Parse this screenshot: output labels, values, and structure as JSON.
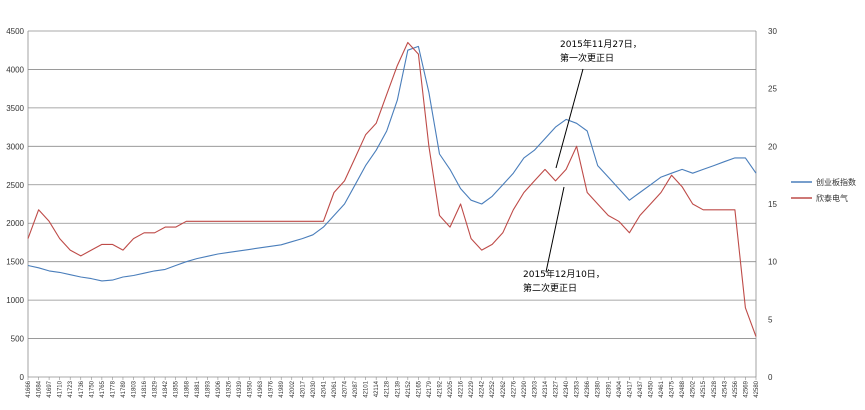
{
  "chart_data": {
    "type": "line",
    "title": "",
    "xlabel": "",
    "ylabel": "",
    "ylim_left": [
      0,
      4500
    ],
    "ylim_right": [
      0,
      30
    ],
    "y_left_ticks": [
      0,
      500,
      1000,
      1500,
      2000,
      2500,
      3000,
      3500,
      4000,
      4500
    ],
    "y_right_ticks": [
      0,
      5,
      10,
      15,
      20,
      25,
      30
    ],
    "x_tick_labels": [
      "41666",
      "41684",
      "41697",
      "41710",
      "41723",
      "41736",
      "41750",
      "41765",
      "41778",
      "41789",
      "41803",
      "41816",
      "41829",
      "41842",
      "41855",
      "41868",
      "41881",
      "41893",
      "41906",
      "41926",
      "41939",
      "41950",
      "41963",
      "41976",
      "41989",
      "42002",
      "42017",
      "42030",
      "42041",
      "42061",
      "42074",
      "42087",
      "42101",
      "42114",
      "42128",
      "42139",
      "42152",
      "42165",
      "42179",
      "42192",
      "42205",
      "42216",
      "42229",
      "42242",
      "42252",
      "42262",
      "42276",
      "42290",
      "42303",
      "42314",
      "42327",
      "42340",
      "42353",
      "42366",
      "42380",
      "42391",
      "42404",
      "42417",
      "42437",
      "42450",
      "42461",
      "42475",
      "42488",
      "42502",
      "42515",
      "42528",
      "42543",
      "42556",
      "42569",
      "42580"
    ],
    "grid": "horizontal",
    "legend_position": "right",
    "series": [
      {
        "name": "创业板指数",
        "axis": "left",
        "color": "#4a7ebb",
        "x": [
          0,
          1,
          2,
          3,
          4,
          5,
          6,
          7,
          8,
          9,
          10,
          11,
          12,
          13,
          14,
          15,
          16,
          17,
          18,
          19,
          20,
          21,
          22,
          23,
          24,
          25,
          26,
          27,
          28,
          29,
          30,
          31,
          32,
          33,
          34,
          35,
          36,
          37,
          38,
          39,
          40,
          41,
          42,
          43,
          44,
          45,
          46,
          47,
          48,
          49,
          50,
          51,
          52,
          53,
          54,
          55,
          56,
          57,
          58,
          59,
          60,
          61,
          62,
          63,
          64,
          65,
          66,
          67,
          68,
          69
        ],
        "values": [
          1450,
          1420,
          1380,
          1360,
          1330,
          1300,
          1280,
          1250,
          1260,
          1300,
          1320,
          1350,
          1380,
          1400,
          1450,
          1500,
          1540,
          1570,
          1600,
          1620,
          1640,
          1660,
          1680,
          1700,
          1720,
          1760,
          1800,
          1850,
          1950,
          2100,
          2250,
          2500,
          2750,
          2950,
          3200,
          3600,
          4250,
          4300,
          3700,
          2900,
          2700,
          2450,
          2300,
          2250,
          2350,
          2500,
          2650,
          2850,
          2950,
          3100,
          3250,
          3350,
          3300,
          3200,
          2750,
          2600,
          2450,
          2300,
          2400,
          2500,
          2600,
          2650,
          2700,
          2650,
          2700,
          2750,
          2800,
          2850,
          2850,
          2650
        ]
      },
      {
        "name": "欣泰电气",
        "axis": "right",
        "color": "#be4b48",
        "x": [
          0,
          1,
          2,
          3,
          4,
          5,
          6,
          7,
          8,
          9,
          10,
          11,
          12,
          13,
          14,
          15,
          16,
          17,
          18,
          19,
          20,
          21,
          22,
          23,
          24,
          25,
          26,
          27,
          28,
          29,
          30,
          31,
          32,
          33,
          34,
          35,
          36,
          37,
          38,
          39,
          40,
          41,
          42,
          43,
          44,
          45,
          46,
          47,
          48,
          49,
          50,
          51,
          52,
          53,
          54,
          55,
          56,
          57,
          58,
          59,
          60,
          61,
          62,
          63,
          64,
          65,
          66,
          67,
          68,
          69
        ],
        "values": [
          12,
          14.5,
          13.5,
          12,
          11,
          10.5,
          11,
          11.5,
          11.5,
          11,
          12,
          12.5,
          12.5,
          13,
          13,
          13.5,
          13.5,
          13.5,
          13.5,
          13.5,
          13.5,
          13.5,
          13.5,
          13.5,
          13.5,
          13.5,
          13.5,
          13.5,
          13.5,
          16,
          17,
          19,
          21,
          22,
          24.5,
          27,
          29,
          28,
          20,
          14,
          13,
          15,
          12,
          11,
          11.5,
          12.5,
          14.5,
          16,
          17,
          18,
          17,
          18,
          20,
          16,
          15,
          14,
          13.5,
          12.5,
          14,
          15,
          16,
          17.5,
          16.5,
          15,
          14.5,
          14.5,
          14.5,
          14.5,
          6,
          3.5
        ]
      }
    ],
    "annotations": [
      {
        "lines": [
          "2015年11月27日，",
          "第一次更正日"
        ]
      },
      {
        "lines": [
          "2015年12月10日，",
          "第二次更正日"
        ]
      }
    ]
  }
}
